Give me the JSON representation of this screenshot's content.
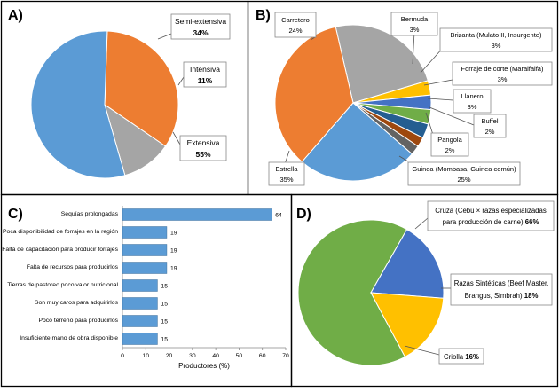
{
  "chart_data": [
    {
      "panel": "A)",
      "type": "pie",
      "slices": [
        {
          "label": "Semi-extensiva",
          "value": 34,
          "display": "34%",
          "color": "#ED7D31"
        },
        {
          "label": "Intensiva",
          "value": 11,
          "display": "11%",
          "color": "#A5A5A5"
        },
        {
          "label": "Extensiva",
          "value": 55,
          "display": "55%",
          "color": "#5B9BD5"
        }
      ]
    },
    {
      "panel": "B)",
      "type": "pie",
      "slices": [
        {
          "label": "Carretero",
          "value": 24,
          "display": "24%",
          "color": "#A5A5A5"
        },
        {
          "label": "Bermuda",
          "value": 3,
          "display": "3%",
          "color": "#FFC000"
        },
        {
          "label": "Brizanta (Mulato II, Insurgente)",
          "value": 3,
          "display": "3%",
          "color": "#4472C4"
        },
        {
          "label": "Forraje de corte (Maralfalfa)",
          "value": 3,
          "display": "3%",
          "color": "#70AD47"
        },
        {
          "label": "Llanero",
          "value": 3,
          "display": "3%",
          "color": "#255E91"
        },
        {
          "label": "Buffel",
          "value": 2,
          "display": "2%",
          "color": "#9E480E"
        },
        {
          "label": "Pangola",
          "value": 2,
          "display": "2%",
          "color": "#636363"
        },
        {
          "label": "Guinea (Mombasa, Guinea común)",
          "value": 25,
          "display": "25%",
          "color": "#5B9BD5"
        },
        {
          "label": "Estrella",
          "value": 35,
          "display": "35%",
          "color": "#ED7D31"
        }
      ]
    },
    {
      "panel": "C)",
      "type": "bar",
      "orientation": "horizontal",
      "categories": [
        "Sequías prolongadas",
        "Poca disponibilidad de forrajes en la región",
        "Falta de capacitación para producir forrajes",
        "Falta de recursos para producirlos",
        "Tierras de pastoreo poco valor nutricional",
        "Son muy caros para adquirirlos",
        "Poco terreno para producirlos",
        "Insuficiente mano de obra disponible"
      ],
      "values": [
        64,
        19,
        19,
        19,
        15,
        15,
        15,
        15
      ],
      "xlabel": "Productores (%)",
      "xlim": [
        0,
        70
      ],
      "xticks": [
        "0",
        "10",
        "20",
        "30",
        "40",
        "50",
        "60",
        "70"
      ],
      "bar_color": "#5B9BD5"
    },
    {
      "panel": "D)",
      "type": "pie",
      "slices": [
        {
          "label": "Cruza (Cebú × razas especializadas para producción de carne)",
          "value": 66,
          "display": "66%",
          "color": "#70AD47"
        },
        {
          "label": "Razas Sintéticas (Beef Master, Brangus, Simbrah)",
          "value": 18,
          "display": "18%",
          "color": "#4472C4"
        },
        {
          "label": "Criolla",
          "value": 16,
          "display": "16%",
          "color": "#FFC000"
        }
      ]
    }
  ],
  "labels": {
    "a": {
      "semi": {
        "name": "Semi-extensiva",
        "pct": "34%"
      },
      "intensiva": {
        "name": "Intensiva",
        "pct": "11%"
      },
      "extensiva": {
        "name": "Extensiva",
        "pct": "55%"
      }
    },
    "b": {
      "carretero": {
        "name": "Carretero",
        "pct": "24%"
      },
      "bermuda": {
        "name": "Bermuda",
        "pct": "3%"
      },
      "brizanta": {
        "name": "Brizanta (Mulato II, Insurgente)",
        "pct": "3%"
      },
      "forraje": {
        "name": "Forraje de corte (Maralfalfa)",
        "pct": "3%"
      },
      "llanero": {
        "name": "Llanero",
        "pct": "3%"
      },
      "buffel": {
        "name": "Buffel",
        "pct": "2%"
      },
      "pangola": {
        "name": "Pangola",
        "pct": "2%"
      },
      "guinea": {
        "name": "Guinea (Mombasa, Guinea común)",
        "pct": "25%"
      },
      "estrella": {
        "name": "Estrella",
        "pct": "35%"
      }
    },
    "d": {
      "cruza_l1": "Cruza (Cebú × razas especializadas",
      "cruza_l2": "para producción de carne)",
      "cruza_pct": "66%",
      "sint_l1": "Razas Sintéticas (Beef Master,",
      "sint_l2": "Brangus, Simbrah)",
      "sint_pct": "18%",
      "criolla": "Criolla",
      "criolla_pct": "16%"
    }
  }
}
